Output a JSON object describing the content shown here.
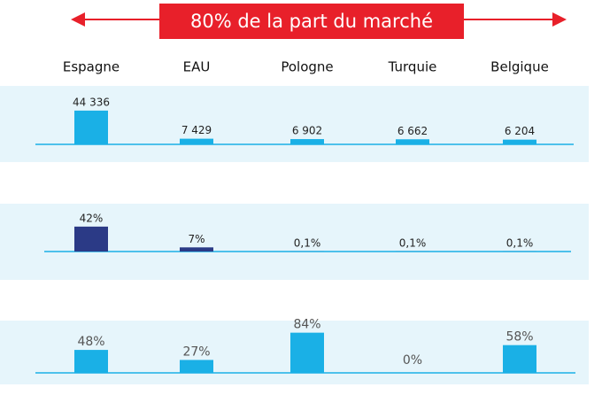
{
  "header": "80% de la part du marché",
  "categories": [
    "Espagne",
    "EAU",
    "Pologne",
    "Turquie",
    "Belgique"
  ],
  "chart_data": [
    {
      "type": "bar",
      "values": [
        44336,
        7429,
        6902,
        6662,
        6204
      ],
      "value_labels": [
        "44 336",
        "7 429",
        "6 902",
        "6 662",
        "6 204"
      ],
      "color": "#1ab0e6",
      "ylim": [
        0,
        50000
      ]
    },
    {
      "type": "bar",
      "values": [
        42,
        7,
        0.1,
        0.1,
        0.1
      ],
      "value_labels": [
        "42%",
        "7%",
        "0,1%",
        "0,1%",
        "0,1%"
      ],
      "color": "#2b3a86",
      "ylim": [
        0,
        100
      ]
    },
    {
      "type": "bar",
      "values": [
        48,
        27,
        84,
        0,
        58
      ],
      "value_labels": [
        "48%",
        "27%",
        "84%",
        "0%",
        "58%"
      ],
      "color": "#1ab0e6",
      "ylim": [
        0,
        100
      ]
    }
  ]
}
